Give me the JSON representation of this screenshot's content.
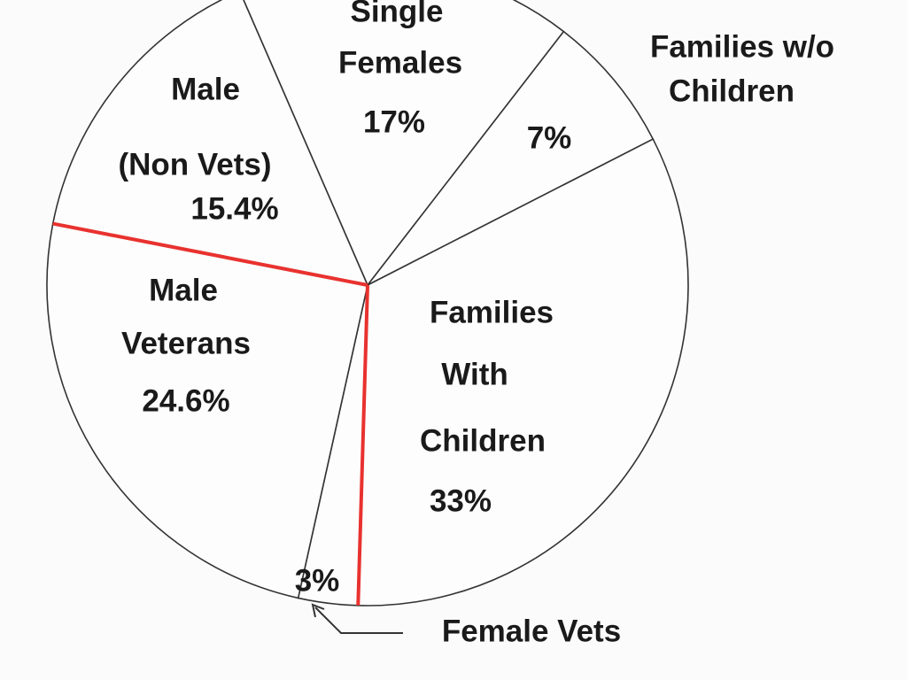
{
  "chart_data": {
    "type": "pie",
    "labels": [
      [
        "Single",
        "Females"
      ],
      [
        "Families w/o",
        "Children"
      ],
      [
        "Families",
        "With",
        "Children"
      ],
      [
        "Female Vets"
      ],
      [
        "Male",
        "Veterans"
      ],
      [
        "Male",
        "(Non Vets)"
      ]
    ],
    "values": [
      17,
      7,
      33,
      3,
      24.6,
      15.4
    ],
    "value_labels": [
      "17%",
      "7%",
      "33%",
      "3%",
      "24.6%",
      "15.4%"
    ],
    "edge_color": "#333333",
    "highlight_color": "#e8322f",
    "highlighted_slices": [
      3,
      4
    ]
  }
}
